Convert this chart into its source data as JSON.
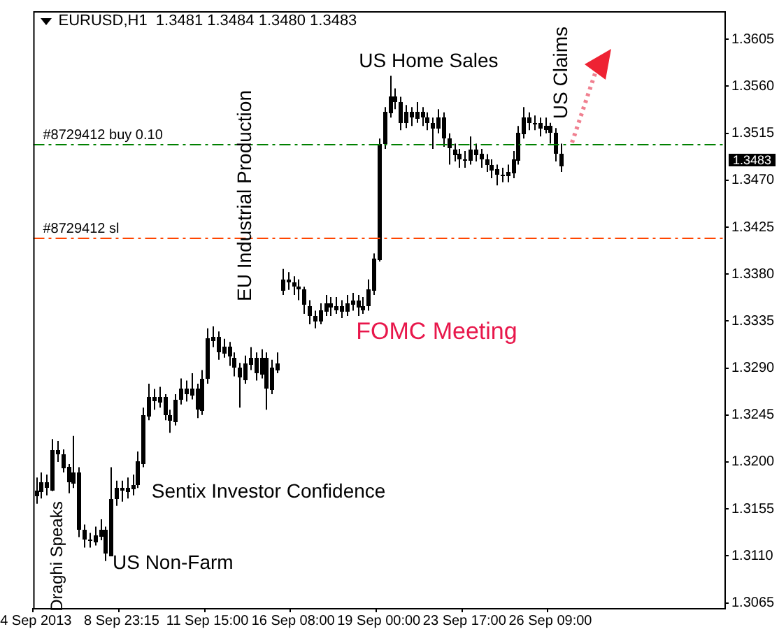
{
  "chart_data": {
    "type": "candlestick",
    "title": "EURUSD,H1  1.3481 1.3484 1.3480 1.3483",
    "color": "#000000",
    "categories": [
      "4 Sep 2013",
      null,
      null,
      null,
      null,
      null,
      null,
      null,
      null,
      null,
      null,
      null,
      null,
      null,
      null,
      null,
      "8 Sep 23:15",
      null,
      null,
      null,
      null,
      null,
      null,
      null,
      null,
      null,
      null,
      null,
      null,
      null,
      null,
      null,
      "11 Sep 15:00",
      null,
      null,
      null,
      null,
      null,
      null,
      null,
      null,
      null,
      null,
      null,
      null,
      null,
      null,
      null,
      "16 Sep 08:00",
      null,
      null,
      null,
      null,
      null,
      null,
      null,
      null,
      null,
      null,
      null,
      null,
      null,
      null,
      null,
      "19 Sep 00:00",
      null,
      null,
      null,
      null,
      null,
      null,
      null,
      null,
      null,
      null,
      null,
      null,
      null,
      null,
      null,
      "23 Sep 17:00",
      null,
      null,
      null,
      null,
      null,
      null,
      null,
      null,
      null,
      null,
      null,
      null,
      null,
      null,
      null,
      "26 Sep 09:00",
      null,
      null,
      null,
      null,
      null,
      null,
      null,
      null,
      null,
      null,
      null,
      null,
      null,
      null,
      null,
      null,
      null,
      null,
      null,
      null,
      null,
      null,
      null,
      null,
      null,
      null,
      null,
      null,
      null,
      null,
      null,
      null
    ],
    "ohlc": [
      [
        1.3168,
        1.3185,
        1.316,
        1.3172
      ],
      [
        1.3172,
        1.319,
        1.3165,
        1.318
      ],
      [
        1.318,
        1.3188,
        1.3168,
        1.3175
      ],
      [
        1.3175,
        1.3222,
        1.3172,
        1.3212
      ],
      [
        1.3212,
        1.322,
        1.32,
        1.3208
      ],
      [
        1.3208,
        1.3212,
        1.319,
        1.3195
      ],
      [
        1.3195,
        1.3198,
        1.317,
        1.318
      ],
      [
        1.318,
        1.3225,
        1.3175,
        1.319
      ],
      [
        1.319,
        1.3195,
        1.3128,
        1.3135
      ],
      [
        1.3135,
        1.314,
        1.3118,
        1.3125
      ],
      [
        1.3125,
        1.3132,
        1.3118,
        1.3125
      ],
      [
        1.3125,
        1.3138,
        1.312,
        1.313
      ],
      [
        1.313,
        1.3145,
        1.3125,
        1.3135
      ],
      [
        1.3135,
        1.3138,
        1.3105,
        1.3112
      ],
      [
        1.3112,
        1.3195,
        1.311,
        1.3165
      ],
      [
        1.3165,
        1.3182,
        1.3158,
        1.3175
      ],
      [
        1.3175,
        1.3182,
        1.3162,
        1.3172
      ],
      [
        1.3172,
        1.3185,
        1.3165,
        1.3175
      ],
      [
        1.3175,
        1.3188,
        1.3168,
        1.3178
      ],
      [
        1.3178,
        1.321,
        1.3175,
        1.32
      ],
      [
        1.32,
        1.3252,
        1.3195,
        1.3245
      ],
      [
        1.3245,
        1.3275,
        1.324,
        1.3262
      ],
      [
        1.3262,
        1.327,
        1.325,
        1.3258
      ],
      [
        1.3258,
        1.3272,
        1.3252,
        1.3262
      ],
      [
        1.3262,
        1.3265,
        1.324,
        1.3245
      ],
      [
        1.3245,
        1.325,
        1.3228,
        1.324
      ],
      [
        1.324,
        1.3265,
        1.3235,
        1.326
      ],
      [
        1.326,
        1.328,
        1.3255,
        1.327
      ],
      [
        1.327,
        1.3278,
        1.3258,
        1.3265
      ],
      [
        1.3265,
        1.3285,
        1.326,
        1.327
      ],
      [
        1.327,
        1.3275,
        1.3242,
        1.325
      ],
      [
        1.325,
        1.3288,
        1.3245,
        1.328
      ],
      [
        1.328,
        1.3328,
        1.3275,
        1.3318
      ],
      [
        1.3318,
        1.333,
        1.331,
        1.332
      ],
      [
        1.332,
        1.3325,
        1.3298,
        1.3305
      ],
      [
        1.3305,
        1.3318,
        1.33,
        1.331
      ],
      [
        1.331,
        1.3315,
        1.3292,
        1.33
      ],
      [
        1.33,
        1.3305,
        1.3282,
        1.329
      ],
      [
        1.329,
        1.3295,
        1.3252,
        1.328
      ],
      [
        1.328,
        1.3302,
        1.3275,
        1.3295
      ],
      [
        1.3295,
        1.331,
        1.3288,
        1.33
      ],
      [
        1.33,
        1.3305,
        1.3278,
        1.3285
      ],
      [
        1.3285,
        1.3308,
        1.328,
        1.33
      ],
      [
        1.33,
        1.3305,
        1.325,
        1.327
      ],
      [
        1.327,
        1.3298,
        1.3265,
        1.329
      ],
      [
        1.329,
        1.3305,
        1.3285,
        1.3295
      ],
      [
        1.3365,
        1.3385,
        1.336,
        1.3375
      ],
      [
        1.3375,
        1.3382,
        1.3365,
        1.3372
      ],
      [
        1.3372,
        1.3378,
        1.336,
        1.3368
      ],
      [
        1.3368,
        1.3375,
        1.3355,
        1.3365
      ],
      [
        1.3365,
        1.3368,
        1.3342,
        1.335
      ],
      [
        1.335,
        1.3355,
        1.3332,
        1.334
      ],
      [
        1.334,
        1.3345,
        1.3328,
        1.3335
      ],
      [
        1.3335,
        1.3352,
        1.3332,
        1.3345
      ],
      [
        1.3345,
        1.336,
        1.334,
        1.3352
      ],
      [
        1.3352,
        1.3358,
        1.334,
        1.3348
      ],
      [
        1.3348,
        1.3358,
        1.3342,
        1.335
      ],
      [
        1.335,
        1.3355,
        1.3338,
        1.3345
      ],
      [
        1.3345,
        1.336,
        1.334,
        1.3352
      ],
      [
        1.3352,
        1.3362,
        1.3345,
        1.3355
      ],
      [
        1.3355,
        1.336,
        1.334,
        1.3348
      ],
      [
        1.3348,
        1.3358,
        1.3342,
        1.335
      ],
      [
        1.335,
        1.3375,
        1.3345,
        1.3365
      ],
      [
        1.3365,
        1.34,
        1.336,
        1.3395
      ],
      [
        1.3395,
        1.351,
        1.3392,
        1.3505
      ],
      [
        1.3505,
        1.354,
        1.35,
        1.3535
      ],
      [
        1.3535,
        1.357,
        1.353,
        1.355
      ],
      [
        1.355,
        1.3558,
        1.3538,
        1.3545
      ],
      [
        1.3545,
        1.355,
        1.3518,
        1.3525
      ],
      [
        1.3525,
        1.3542,
        1.352,
        1.3535
      ],
      [
        1.3535,
        1.354,
        1.3522,
        1.353
      ],
      [
        1.353,
        1.3545,
        1.3525,
        1.3535
      ],
      [
        1.3535,
        1.354,
        1.3522,
        1.353
      ],
      [
        1.353,
        1.3535,
        1.3518,
        1.3525
      ],
      [
        1.3525,
        1.353,
        1.35,
        1.352
      ],
      [
        1.352,
        1.3538,
        1.3515,
        1.353
      ],
      [
        1.353,
        1.3535,
        1.3502,
        1.351
      ],
      [
        1.351,
        1.3515,
        1.3485,
        1.35
      ],
      [
        1.35,
        1.3505,
        1.3488,
        1.3495
      ],
      [
        1.3495,
        1.35,
        1.3482,
        1.349
      ],
      [
        1.349,
        1.3498,
        1.3482,
        1.349
      ],
      [
        1.349,
        1.3512,
        1.3485,
        1.35
      ],
      [
        1.35,
        1.3505,
        1.3488,
        1.3495
      ],
      [
        1.3495,
        1.35,
        1.3482,
        1.349
      ],
      [
        1.349,
        1.3495,
        1.3478,
        1.3485
      ],
      [
        1.3485,
        1.349,
        1.3472,
        1.348
      ],
      [
        1.348,
        1.3485,
        1.3465,
        1.3475
      ],
      [
        1.3475,
        1.3482,
        1.3468,
        1.3475
      ],
      [
        1.3475,
        1.3485,
        1.3468,
        1.3478
      ],
      [
        1.3478,
        1.3498,
        1.3472,
        1.349
      ],
      [
        1.349,
        1.3522,
        1.3485,
        1.3515
      ],
      [
        1.3515,
        1.354,
        1.351,
        1.353
      ],
      [
        1.353,
        1.3535,
        1.3518,
        1.3525
      ],
      [
        1.3525,
        1.3532,
        1.3518,
        1.3525
      ],
      [
        1.3525,
        1.353,
        1.3512,
        1.352
      ],
      [
        1.352,
        1.353,
        1.3515,
        1.3522
      ],
      [
        1.3522,
        1.3525,
        1.3505,
        1.3515
      ],
      [
        1.3515,
        1.352,
        1.3488,
        1.3495
      ],
      [
        1.3495,
        1.3505,
        1.3478,
        1.3483
      ],
      null,
      null,
      null,
      null,
      null,
      null,
      null,
      null,
      null,
      null,
      null,
      null,
      null,
      null,
      null,
      null,
      null,
      null,
      null,
      null,
      null,
      null,
      null,
      null,
      null,
      null,
      null,
      null,
      null,
      null
    ],
    "ylim": [
      1.306,
      1.3632
    ],
    "yticks": [
      1.3065,
      {
        "value": 1.311,
        "label": "1.3110"
      },
      1.3155,
      {
        "value": 1.32,
        "label": "1.3200"
      },
      1.3245,
      {
        "value": 1.329,
        "label": "1.3290"
      },
      1.3335,
      {
        "value": 1.338,
        "label": "1.3380"
      },
      1.3425,
      {
        "value": 1.347,
        "label": "1.3470"
      },
      1.3515,
      {
        "value": 1.356,
        "label": "1.3560"
      },
      1.3605
    ],
    "grid": false,
    "legend": false,
    "ref_lines": [
      {
        "axis": "y",
        "value": 1.3505,
        "label": "#8729412 buy 0.10",
        "color": "#008000",
        "line_style": "dashed"
      },
      {
        "axis": "y",
        "value": 1.3415,
        "label": "#8729412 sl",
        "color": "#ff4500",
        "line_style": "dashed"
      }
    ],
    "annotations": [
      "US Home Sales",
      "US Claims",
      "EU Industrial Production",
      "FOMC Meeting",
      "Sentix Investor Confidence",
      "US Non-Farm",
      "Draghi Speaks",
      "1.3483"
    ]
  }
}
